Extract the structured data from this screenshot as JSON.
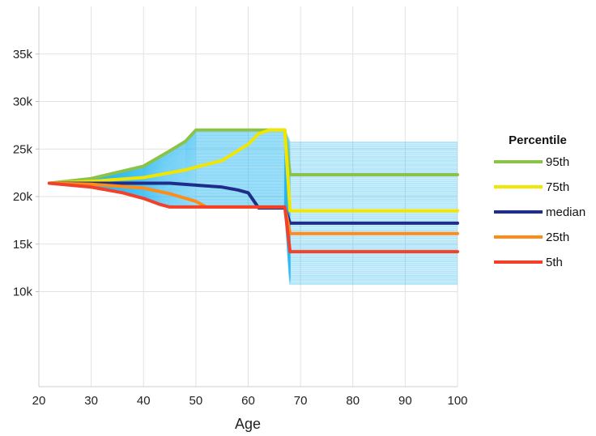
{
  "chart_data": {
    "type": "line",
    "xlabel": "Age",
    "ylabel": "",
    "xlim": [
      20,
      100
    ],
    "ylim": [
      0,
      40000
    ],
    "x_ticks": [
      20,
      30,
      40,
      50,
      60,
      70,
      80,
      90,
      100
    ],
    "y_ticks": [
      10000,
      15000,
      20000,
      25000,
      30000,
      35000
    ],
    "x_tick_labels": [
      "20",
      "30",
      "40",
      "50",
      "60",
      "70",
      "80",
      "90",
      "100"
    ],
    "y_tick_labels": [
      "10k",
      "15k",
      "20k",
      "25k",
      "30k",
      "35k"
    ],
    "grid": true,
    "legend_position": "right",
    "legend_title": "Percentile",
    "simulation_paths_color": "#29b6f0",
    "series": [
      {
        "name": "95th",
        "color": "#8bc34a",
        "points": [
          [
            22,
            21400
          ],
          [
            30,
            21900
          ],
          [
            40,
            23200
          ],
          [
            45,
            24800
          ],
          [
            48,
            25800
          ],
          [
            50,
            27000
          ],
          [
            67,
            27000
          ],
          [
            68,
            22300
          ],
          [
            100,
            22300
          ]
        ]
      },
      {
        "name": "75th",
        "color": "#f2e600",
        "points": [
          [
            22,
            21400
          ],
          [
            30,
            21600
          ],
          [
            40,
            22000
          ],
          [
            48,
            22800
          ],
          [
            55,
            23800
          ],
          [
            60,
            25500
          ],
          [
            62,
            26600
          ],
          [
            64,
            27000
          ],
          [
            67,
            27000
          ],
          [
            68,
            18500
          ],
          [
            100,
            18500
          ]
        ]
      },
      {
        "name": "median",
        "color": "#1f2d8a",
        "points": [
          [
            22,
            21400
          ],
          [
            30,
            21400
          ],
          [
            45,
            21400
          ],
          [
            50,
            21200
          ],
          [
            55,
            21000
          ],
          [
            58,
            20700
          ],
          [
            60,
            20400
          ],
          [
            61,
            19600
          ],
          [
            62,
            18800
          ],
          [
            67,
            18800
          ],
          [
            68,
            17200
          ],
          [
            100,
            17200
          ]
        ]
      },
      {
        "name": "25th",
        "color": "#ff8c1a",
        "points": [
          [
            22,
            21400
          ],
          [
            30,
            21300
          ],
          [
            40,
            20900
          ],
          [
            45,
            20300
          ],
          [
            50,
            19500
          ],
          [
            52,
            18900
          ],
          [
            67,
            18900
          ],
          [
            68,
            16100
          ],
          [
            100,
            16100
          ]
        ]
      },
      {
        "name": "5th",
        "color": "#f2402a",
        "points": [
          [
            22,
            21400
          ],
          [
            30,
            21000
          ],
          [
            36,
            20400
          ],
          [
            40,
            19800
          ],
          [
            43,
            19200
          ],
          [
            45,
            18900
          ],
          [
            67,
            18900
          ],
          [
            68,
            14200
          ],
          [
            100,
            14200
          ]
        ]
      }
    ]
  }
}
